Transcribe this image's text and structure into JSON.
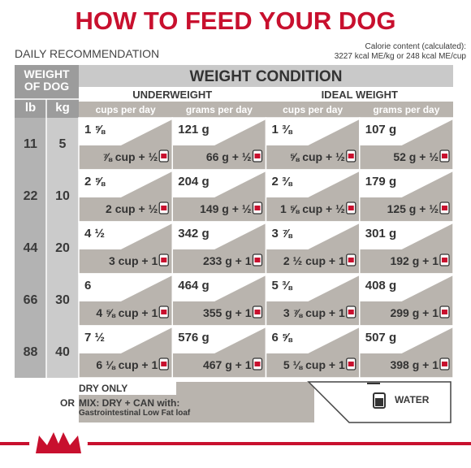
{
  "header": {
    "title": "HOW TO FEED YOUR DOG",
    "subtitle": "DAILY RECOMMENDATION",
    "calorie_label": "Calorie content (calculated):",
    "calorie_value": "3227 kcal ME/kg or 248 kcal ME/cup"
  },
  "table": {
    "weight_header": "WEIGHT OF DOG",
    "lb_header": "lb",
    "kg_header": "kg",
    "condition_header": "WEIGHT CONDITION",
    "groups": [
      "UNDERWEIGHT",
      "IDEAL WEIGHT"
    ],
    "columns": [
      "cups per day",
      "grams per day",
      "cups per day",
      "grams per day"
    ],
    "rows": [
      {
        "lb": 11,
        "kg": 5,
        "cells": [
          [
            "1 ⅝",
            "⅞ cup + ½"
          ],
          [
            "121 g",
            "66 g + ½"
          ],
          [
            "1 ⅜",
            "⅝ cup + ½"
          ],
          [
            "107 g",
            "52 g + ½"
          ]
        ]
      },
      {
        "lb": 22,
        "kg": 10,
        "cells": [
          [
            "2 ⅝",
            "2 cup + ½"
          ],
          [
            "204 g",
            "149 g + ½"
          ],
          [
            "2 ⅜",
            "1 ⅝ cup + ½"
          ],
          [
            "179 g",
            "125 g + ½"
          ]
        ]
      },
      {
        "lb": 44,
        "kg": 20,
        "cells": [
          [
            "4 ½",
            "3 cup + 1"
          ],
          [
            "342 g",
            "233 g + 1"
          ],
          [
            "3 ⅞",
            "2 ½ cup + 1"
          ],
          [
            "301 g",
            "192 g + 1"
          ]
        ]
      },
      {
        "lb": 66,
        "kg": 30,
        "cells": [
          [
            "6",
            "4 ⅝ cup + 1"
          ],
          [
            "464 g",
            "355 g + 1"
          ],
          [
            "5 ⅜",
            "3 ⅞ cup + 1"
          ],
          [
            "408 g",
            "299 g + 1"
          ]
        ]
      },
      {
        "lb": 88,
        "kg": 40,
        "cells": [
          [
            "7 ½",
            "6 ⅛ cup + 1"
          ],
          [
            "576 g",
            "467 g + 1"
          ],
          [
            "6 ⅝",
            "5 ⅛ cup + 1"
          ],
          [
            "507 g",
            "398 g + 1"
          ]
        ]
      }
    ]
  },
  "legend": {
    "dry": "DRY ONLY",
    "or": "OR",
    "mix": "MIX: DRY + CAN with:",
    "product": "Gastrointestinal Low Fat loaf",
    "water": "WATER"
  }
}
